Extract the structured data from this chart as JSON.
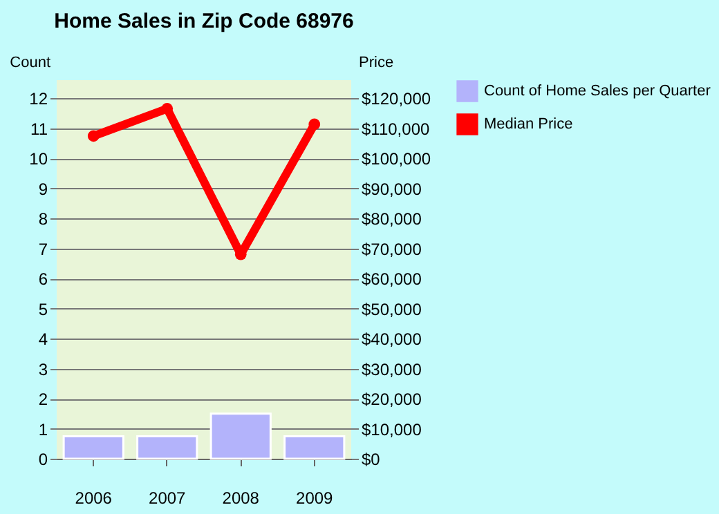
{
  "chart_data": {
    "type": "bar",
    "title": "Home Sales in Zip Code 68976",
    "ylabel": "Count",
    "y2label": "Price",
    "categories": [
      "2006",
      "2007",
      "2008",
      "2009"
    ],
    "series": [
      {
        "name": "Count of Home Sales per Quarter",
        "color": "#b3b3fb",
        "values": [
          0.75,
          0.75,
          1.5,
          0.75
        ]
      },
      {
        "name": "Median Price",
        "type": "line",
        "axis": "y2",
        "color": "#ff0000",
        "values": [
          107400,
          116500,
          68000,
          111300
        ]
      }
    ],
    "ylim": [
      0,
      12.6
    ],
    "yticks": [
      0,
      1,
      2,
      3,
      4,
      5,
      6,
      7,
      8,
      9,
      10,
      11,
      12
    ],
    "y2lim": [
      0,
      126000
    ],
    "y2ticks": [
      {
        "value": 0,
        "label": "$0"
      },
      {
        "value": 10000,
        "label": "$10,000"
      },
      {
        "value": 20000,
        "label": "$20,000"
      },
      {
        "value": 30000,
        "label": "$30,000"
      },
      {
        "value": 40000,
        "label": "$40,000"
      },
      {
        "value": 50000,
        "label": "$50,000"
      },
      {
        "value": 60000,
        "label": "$60,000"
      },
      {
        "value": 70000,
        "label": "$70,000"
      },
      {
        "value": 80000,
        "label": "$80,000"
      },
      {
        "value": 90000,
        "label": "$90,000"
      },
      {
        "value": 100000,
        "label": "$100,000"
      },
      {
        "value": 110000,
        "label": "$110,000"
      },
      {
        "value": 120000,
        "label": "$120,000"
      }
    ],
    "grid": "y",
    "legend": "right",
    "marker": "circle"
  }
}
